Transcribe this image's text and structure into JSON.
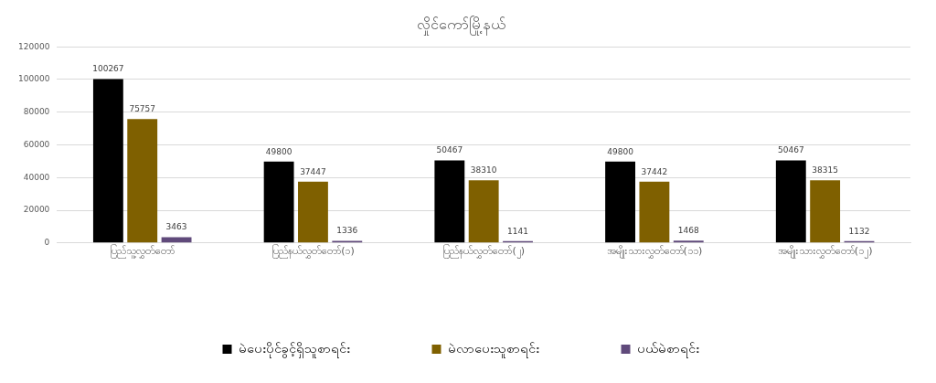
{
  "chart_data": {
    "type": "bar",
    "title": "လှိုင်ကော်မြို့နယ်",
    "categories": [
      "ပြည်သူ့လွှတ်တော်",
      "ပြည်နယ်လွှတ်တော်(၁)",
      "ပြည်နယ်လွှတ်တော်(၂)",
      "အမျိုးသားလွှတ်တော်(၁၁)",
      "အမျိုးသားလွှတ်တော်(၁၂)"
    ],
    "series": [
      {
        "name": "မဲပေးပိုင်ခွင့်ရှိသူစာရင်း",
        "color": "#000000",
        "values": [
          100267,
          49800,
          50467,
          49800,
          50467
        ]
      },
      {
        "name": "မဲလာပေးသူစာရင်း",
        "color": "#7f6000",
        "values": [
          75757,
          37447,
          38310,
          37442,
          38315
        ]
      },
      {
        "name": "ပယ်မဲစာရင်း",
        "color": "#604a7b",
        "values": [
          3463,
          1336,
          1141,
          1468,
          1132
        ]
      }
    ],
    "ylim": [
      0,
      120000
    ],
    "yticks": [
      0,
      20000,
      40000,
      60000,
      80000,
      100000,
      120000
    ],
    "grid": "y",
    "legend": "bottom",
    "data_labels": true
  }
}
